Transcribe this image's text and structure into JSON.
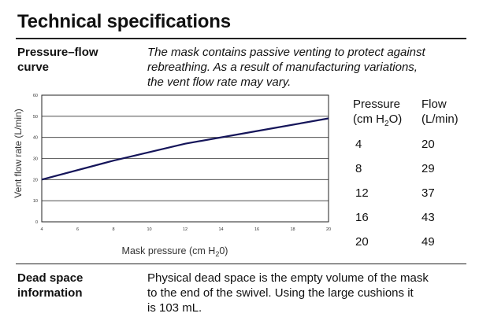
{
  "page": {
    "title": "Technical specifications"
  },
  "pressure_flow": {
    "label_line1": "Pressure–flow",
    "label_line2": "curve",
    "intro_lines": [
      "The mask contains passive venting to protect against",
      "rebreathing. As a result of manufacturing variations,",
      "the vent flow rate may vary."
    ]
  },
  "chart_data": {
    "type": "line",
    "title": "",
    "xlabel_main": "Mask pressure (cm H",
    "xlabel_sub": "2",
    "xlabel_end": "0)",
    "ylabel": "Vent flow rate (L/min)",
    "xlim": [
      4,
      20
    ],
    "ylim": [
      0,
      60
    ],
    "x_ticks": [
      "4",
      "6",
      "8",
      "10",
      "12",
      "14",
      "16",
      "18",
      "20"
    ],
    "y_ticks": [
      "0",
      "10",
      "20",
      "30",
      "40",
      "50",
      "60"
    ],
    "grid": true,
    "series": [
      {
        "x": [
          4,
          8,
          12,
          16,
          20
        ],
        "values": [
          20,
          29,
          37,
          43,
          49
        ]
      }
    ],
    "line_color": "#15155a"
  },
  "table": {
    "col1_header_line1": "Pressure",
    "col1_header_line2_main": "(cm H",
    "col1_header_line2_sub": "2",
    "col1_header_line2_end": "O)",
    "col2_header_line1": "Flow",
    "col2_header_line2": "(L/min)",
    "rows": [
      {
        "pressure": "4",
        "flow": "20"
      },
      {
        "pressure": "8",
        "flow": "29"
      },
      {
        "pressure": "12",
        "flow": "37"
      },
      {
        "pressure": "16",
        "flow": "43"
      },
      {
        "pressure": "20",
        "flow": "49"
      }
    ]
  },
  "dead_space": {
    "label_line1": "Dead space",
    "label_line2": "information",
    "text_lines": [
      "Physical dead space is the empty volume of the mask",
      "to the end of the swivel. Using the large cushions it",
      "is 103 mL."
    ]
  }
}
